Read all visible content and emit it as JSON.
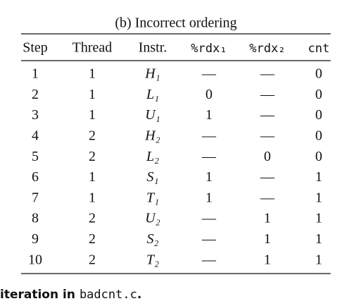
{
  "caption": "(b) Incorrect ordering",
  "header": [
    "Step",
    "Thread",
    "Instr.",
    "%rdx₁",
    "%rdx₂",
    "cnt"
  ],
  "rows": [
    [
      "1",
      "1",
      "H₁",
      "—",
      "—",
      "0"
    ],
    [
      "2",
      "1",
      "L₁",
      "0",
      "—",
      "0"
    ],
    [
      "3",
      "1",
      "U₁",
      "1",
      "—",
      "0"
    ],
    [
      "4",
      "2",
      "H₂",
      "—",
      "—",
      "0"
    ],
    [
      "5",
      "2",
      "L₂",
      "—",
      "0",
      "0"
    ],
    [
      "6",
      "1",
      "S₁",
      "1",
      "—",
      "1"
    ],
    [
      "7",
      "1",
      "T₁",
      "1",
      "—",
      "1"
    ],
    [
      "8",
      "2",
      "U₂",
      "—",
      "1",
      "1"
    ],
    [
      "9",
      "2",
      "S₂",
      "—",
      "1",
      "1"
    ],
    [
      "10",
      "2",
      "T₂",
      "—",
      "1",
      "1"
    ]
  ],
  "footer": [
    "iteration in",
    "badcnt.c",
    "."
  ]
}
